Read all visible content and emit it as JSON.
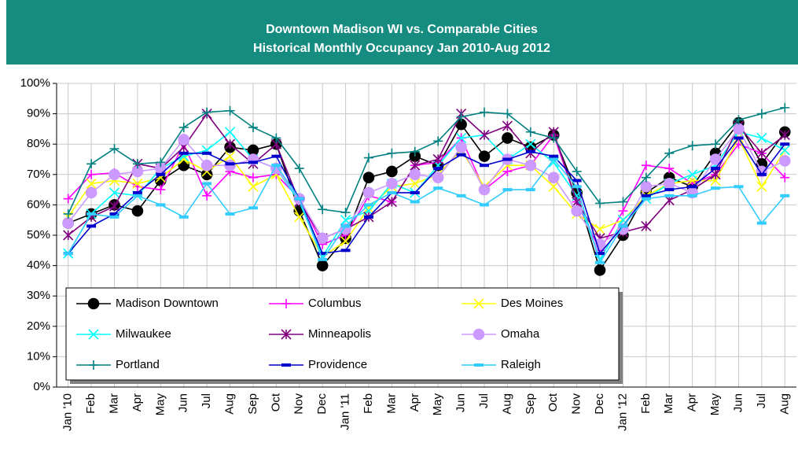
{
  "chart_data": {
    "type": "line",
    "title": "Downtown Madison WI vs. Comparable Cities",
    "subtitle": "Historical Monthly Occupancy Jan 2010-Aug 2012",
    "categories": [
      "Jan '10",
      "Feb",
      "Mar",
      "Apr",
      "May",
      "Jun",
      "Jul",
      "Aug",
      "Sep",
      "Oct",
      "Nov",
      "Dec",
      "Jan '11",
      "Feb",
      "Mar",
      "Apr",
      "May",
      "Jun",
      "Jul",
      "Aug",
      "Sep",
      "Oct",
      "Nov",
      "Dec",
      "Jan '12",
      "Feb",
      "Mar",
      "Apr",
      "May",
      "Jun",
      "Jul",
      "Aug"
    ],
    "ylim": [
      0,
      100
    ],
    "yticks": [
      {
        "value": 0,
        "label": "0%"
      },
      {
        "value": 10,
        "label": "10%"
      },
      {
        "value": 20,
        "label": "20%"
      },
      {
        "value": 30,
        "label": "30%"
      },
      {
        "value": 40,
        "label": "40%"
      },
      {
        "value": 50,
        "label": "50%"
      },
      {
        "value": 60,
        "label": "60%"
      },
      {
        "value": 70,
        "label": "70%"
      },
      {
        "value": 80,
        "label": "80%"
      },
      {
        "value": 90,
        "label": "90%"
      },
      {
        "value": 100,
        "label": "100%"
      }
    ],
    "grid": true,
    "legend": "bottom-left",
    "series": [
      {
        "name": "Madison Downtown",
        "color": "#000000",
        "marker": "circle",
        "values": [
          54,
          57,
          60,
          58,
          68,
          73,
          70,
          79,
          78,
          80,
          58,
          40,
          49,
          69,
          71,
          76,
          73,
          86.5,
          76,
          82,
          79,
          83,
          64,
          38.5,
          50,
          64,
          69,
          66,
          77,
          87,
          73.5,
          84
        ]
      },
      {
        "name": "Columbus",
        "color": "#ff00ff",
        "marker": "plus",
        "values": [
          62,
          70,
          70.5,
          66,
          65,
          80,
          63,
          71,
          69,
          70,
          62,
          47,
          50,
          63,
          61,
          73,
          74,
          82,
          65,
          71,
          73,
          83,
          61,
          45,
          58,
          73,
          72,
          67,
          70,
          80,
          77,
          69
        ]
      },
      {
        "name": "Des Moines",
        "color": "#ffff00",
        "marker": "xcross",
        "values": [
          56,
          67,
          68,
          67,
          69,
          75,
          71,
          76,
          66,
          70,
          56,
          43,
          48,
          59,
          66,
          67,
          70,
          78,
          66,
          73,
          73,
          66,
          57,
          52,
          55,
          63,
          67,
          68,
          68,
          82,
          66,
          78
        ]
      },
      {
        "name": "Milwaukee",
        "color": "#00ffff",
        "marker": "xcross",
        "values": [
          44,
          57,
          64,
          63,
          72,
          76,
          78,
          84,
          75,
          72,
          61,
          43,
          55,
          58,
          67,
          64,
          73,
          82,
          83,
          75,
          80,
          74,
          63,
          42,
          55,
          62,
          67,
          70,
          73,
          84,
          82,
          78
        ]
      },
      {
        "name": "Minneapolis",
        "color": "#800080",
        "marker": "star",
        "values": [
          50,
          56,
          59.5,
          73.5,
          72,
          79,
          90,
          80,
          73.5,
          80,
          61,
          49,
          52,
          56,
          61,
          73,
          75,
          90,
          83,
          86,
          77,
          84,
          61,
          49,
          51,
          53,
          61.5,
          65,
          70,
          86,
          77,
          83
        ]
      },
      {
        "name": "Omaha",
        "color": "#cc99ff",
        "marker": "circle",
        "values": [
          54,
          64,
          70,
          71,
          72,
          81.5,
          73,
          73,
          75,
          72,
          62,
          49,
          52,
          64,
          67,
          70,
          69,
          79,
          65,
          75,
          73,
          69,
          58,
          47,
          52,
          66,
          67,
          64,
          75,
          85,
          71,
          74.5
        ]
      },
      {
        "name": "Portland",
        "color": "#008080",
        "marker": "plus",
        "values": [
          57,
          73.5,
          78.5,
          73.5,
          74,
          85.5,
          90.5,
          91,
          85.5,
          82,
          72,
          58.5,
          57.5,
          75.5,
          77,
          77.5,
          81,
          89,
          90.5,
          90,
          84,
          82,
          71,
          60.5,
          61,
          69,
          77,
          79.5,
          80,
          88,
          90,
          92
        ]
      },
      {
        "name": "Providence",
        "color": "#0000cc",
        "marker": "dash",
        "values": [
          44,
          53,
          57,
          64,
          70,
          77,
          77,
          73.5,
          74,
          76,
          62,
          44,
          45,
          56,
          64,
          64,
          72,
          76.5,
          73,
          75,
          77.5,
          76,
          68,
          44,
          53,
          63,
          65,
          66,
          72,
          82,
          70,
          80
        ]
      },
      {
        "name": "Raleigh",
        "color": "#33ccff",
        "marker": "dash",
        "values": [
          44,
          57,
          56,
          63,
          60,
          56,
          67,
          57,
          59,
          73,
          62,
          42,
          53,
          60,
          64,
          61,
          65.5,
          63,
          60,
          65,
          65,
          75,
          66,
          41,
          53,
          62,
          63,
          63,
          65.5,
          66,
          54,
          63
        ]
      }
    ]
  }
}
